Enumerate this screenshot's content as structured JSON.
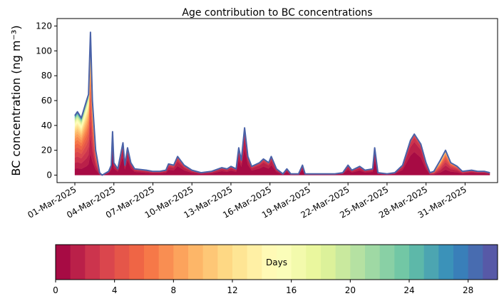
{
  "chart_data": {
    "type": "area",
    "title": "Age contribution to BC concentrations",
    "ylabel": "BC concentration (ng m⁻³)",
    "xlabel": "",
    "ylim": [
      -6,
      126
    ],
    "xlim_days_since_01_Mar_2025": [
      -1.37,
      32.5
    ],
    "yticks": [
      0,
      20,
      40,
      60,
      80,
      100,
      120
    ],
    "xticks": [
      {
        "day": 0,
        "label": "01-Mar-2025"
      },
      {
        "day": 3,
        "label": "04-Mar-2025"
      },
      {
        "day": 6,
        "label": "07-Mar-2025"
      },
      {
        "day": 9,
        "label": "10-Mar-2025"
      },
      {
        "day": 12,
        "label": "13-Mar-2025"
      },
      {
        "day": 15,
        "label": "16-Mar-2025"
      },
      {
        "day": 18,
        "label": "19-Mar-2025"
      },
      {
        "day": 21,
        "label": "22-Mar-2025"
      },
      {
        "day": 24,
        "label": "25-Mar-2025"
      },
      {
        "day": 27,
        "label": "28-Mar-2025"
      },
      {
        "day": 30,
        "label": "31-Mar-2025"
      }
    ],
    "series_description": "Stacked areas of BC by age bin (0-30 days, 1-day bins); total outlined in blue",
    "x_days": [
      0,
      0.2,
      0.5,
      0.9,
      1.05,
      1.2,
      1.35,
      1.6,
      1.9,
      2.1,
      2.6,
      2.8,
      2.9,
      3.0,
      3.3,
      3.7,
      3.85,
      4.05,
      4.3,
      4.6,
      5.5,
      6.0,
      6.5,
      7.0,
      7.2,
      7.6,
      7.9,
      8.4,
      9.0,
      9.7,
      10.5,
      11.3,
      11.7,
      12.0,
      12.4,
      12.6,
      12.8,
      13.05,
      13.3,
      13.6,
      14.2,
      14.5,
      14.9,
      15.1,
      15.5,
      16.0,
      16.3,
      16.6,
      17.2,
      17.5,
      17.7,
      18.0,
      19.0,
      20.0,
      20.6,
      21.0,
      21.3,
      21.9,
      22.3,
      22.9,
      23.05,
      23.3,
      24.0,
      24.6,
      25.2,
      25.8,
      26.1,
      26.6,
      27.0,
      27.3,
      27.6,
      28.1,
      28.5,
      28.9,
      29.4,
      29.8,
      30.5,
      31.0,
      31.5,
      31.9
    ],
    "total": [
      48,
      51,
      46,
      60,
      65,
      115,
      60,
      20,
      2,
      0,
      3,
      8,
      35,
      10,
      5,
      26,
      8,
      22,
      10,
      5,
      4,
      3,
      3,
      4,
      9,
      8,
      15,
      8,
      4,
      2,
      3,
      6,
      5,
      7,
      5,
      22,
      12,
      38,
      15,
      7,
      10,
      13,
      10,
      15,
      5,
      1,
      5,
      1,
      1,
      8,
      1,
      1,
      1,
      1,
      2,
      8,
      4,
      7,
      4,
      5,
      22,
      2,
      1,
      2,
      8,
      28,
      33,
      25,
      10,
      2,
      3,
      12,
      20,
      10,
      7,
      3,
      4,
      3,
      3,
      2
    ],
    "mean_age_days": [
      9,
      9,
      9,
      8,
      7,
      6,
      5,
      4,
      3,
      2,
      1.2,
      1.2,
      1.2,
      1.2,
      1.2,
      1.2,
      1.2,
      1.2,
      1.2,
      1.3,
      1.5,
      1.5,
      1.5,
      1.5,
      1.5,
      1.5,
      1.5,
      1.5,
      1.5,
      1.5,
      1.5,
      1.3,
      1.3,
      1.3,
      1.3,
      1.2,
      1.2,
      1.2,
      1.2,
      1.3,
      1.3,
      1.3,
      1.3,
      1.3,
      1.3,
      1.3,
      1.3,
      1.3,
      1.3,
      1.2,
      1.3,
      1.3,
      1.3,
      1.3,
      1.3,
      1.2,
      1.3,
      1.3,
      1.3,
      1.3,
      1.2,
      1.3,
      1.3,
      1.3,
      1.3,
      1.2,
      1.2,
      1.2,
      1.5,
      2.5,
      4,
      5,
      4,
      3,
      2.5,
      2,
      1.6,
      1.5,
      1.5,
      1.5
    ],
    "outline_color": "#4a62a8",
    "colorbar": {
      "label": "Days",
      "range": [
        0,
        30
      ],
      "n_bins": 30,
      "ticks": [
        0,
        4,
        8,
        12,
        16,
        20,
        24,
        28
      ],
      "colormap": [
        "#9e0142",
        "#d53e4f",
        "#f46d43",
        "#fdae61",
        "#fee08b",
        "#ffffbf",
        "#e6f598",
        "#abdda4",
        "#66c2a5",
        "#3288bd",
        "#5e4fa2"
      ]
    }
  }
}
